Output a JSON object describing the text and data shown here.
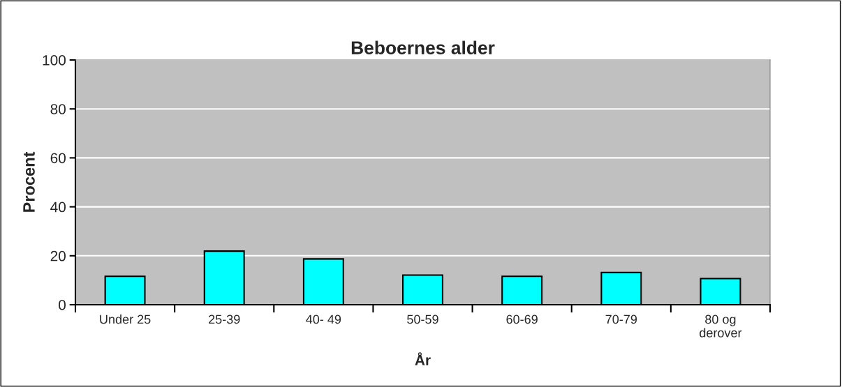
{
  "chart_data": {
    "type": "bar",
    "title": "Beboernes alder",
    "xlabel": "År",
    "ylabel": "Procent",
    "categories": [
      "Under 25",
      "25-39",
      "40- 49",
      "50-59",
      "60-69",
      "70-79",
      "80 og\nderover"
    ],
    "values": [
      11.6,
      21.9,
      18.7,
      12.1,
      11.6,
      13.2,
      10.7
    ],
    "color": "#00ffff",
    "ylim": [
      0,
      100
    ],
    "yticks": [
      0,
      20,
      40,
      60,
      80,
      100
    ],
    "grid": "y",
    "legend": false
  }
}
